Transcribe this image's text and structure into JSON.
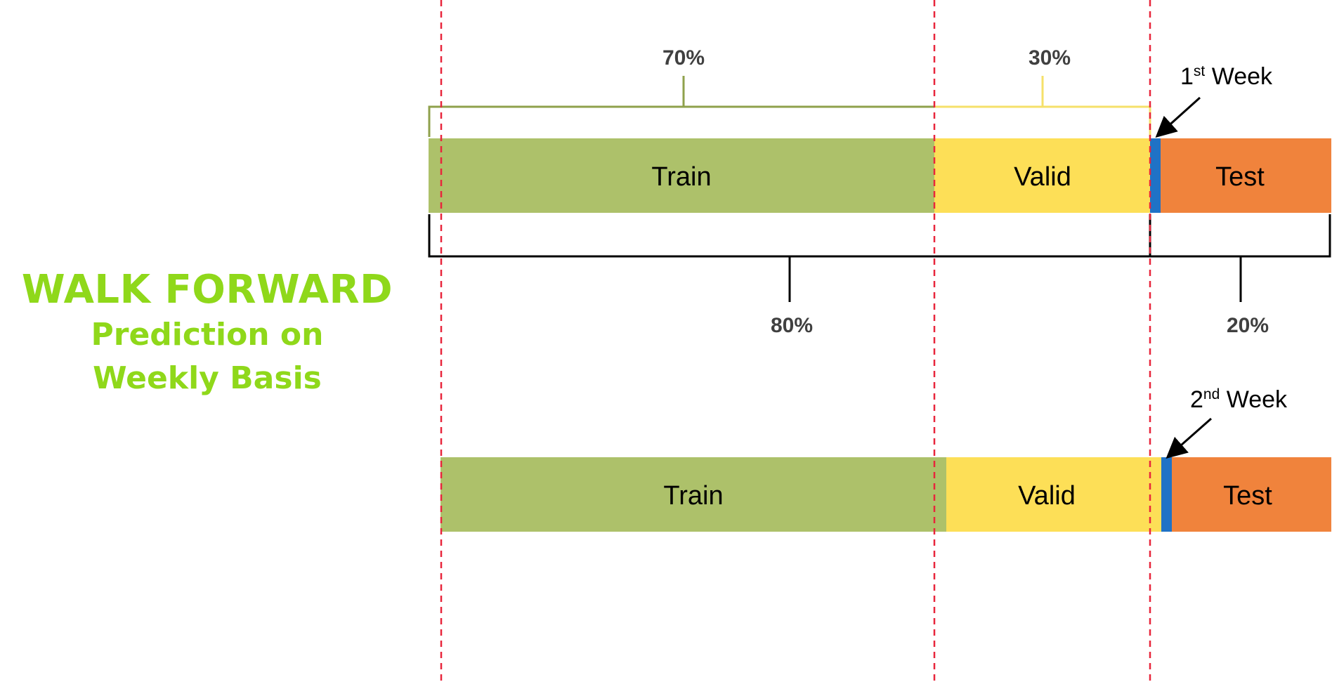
{
  "title": {
    "main": "WALK FORWARD",
    "line2": "Prediction on",
    "line3": "Weekly Basis"
  },
  "colors": {
    "train": "#adc16a",
    "valid": "#fddf57",
    "test": "#f0833c",
    "week_marker": "#1f72c6",
    "split_line": "#e8263c",
    "bracket_70": "#8fa14c",
    "bracket_30": "#f5e06a",
    "title": "#8fd81a"
  },
  "top_bar": {
    "train": "Train",
    "valid": "Valid",
    "test": "Test",
    "week_label": "1",
    "week_suffix": "st",
    "week_word": " Week"
  },
  "bottom_bar": {
    "train": "Train",
    "valid": "Valid",
    "test": "Test",
    "week_label": "2",
    "week_suffix": "nd",
    "week_word": " Week"
  },
  "percent_labels": {
    "train_share": "70%",
    "valid_share": "30%",
    "trainval_share": "80%",
    "test_share": "20%"
  }
}
